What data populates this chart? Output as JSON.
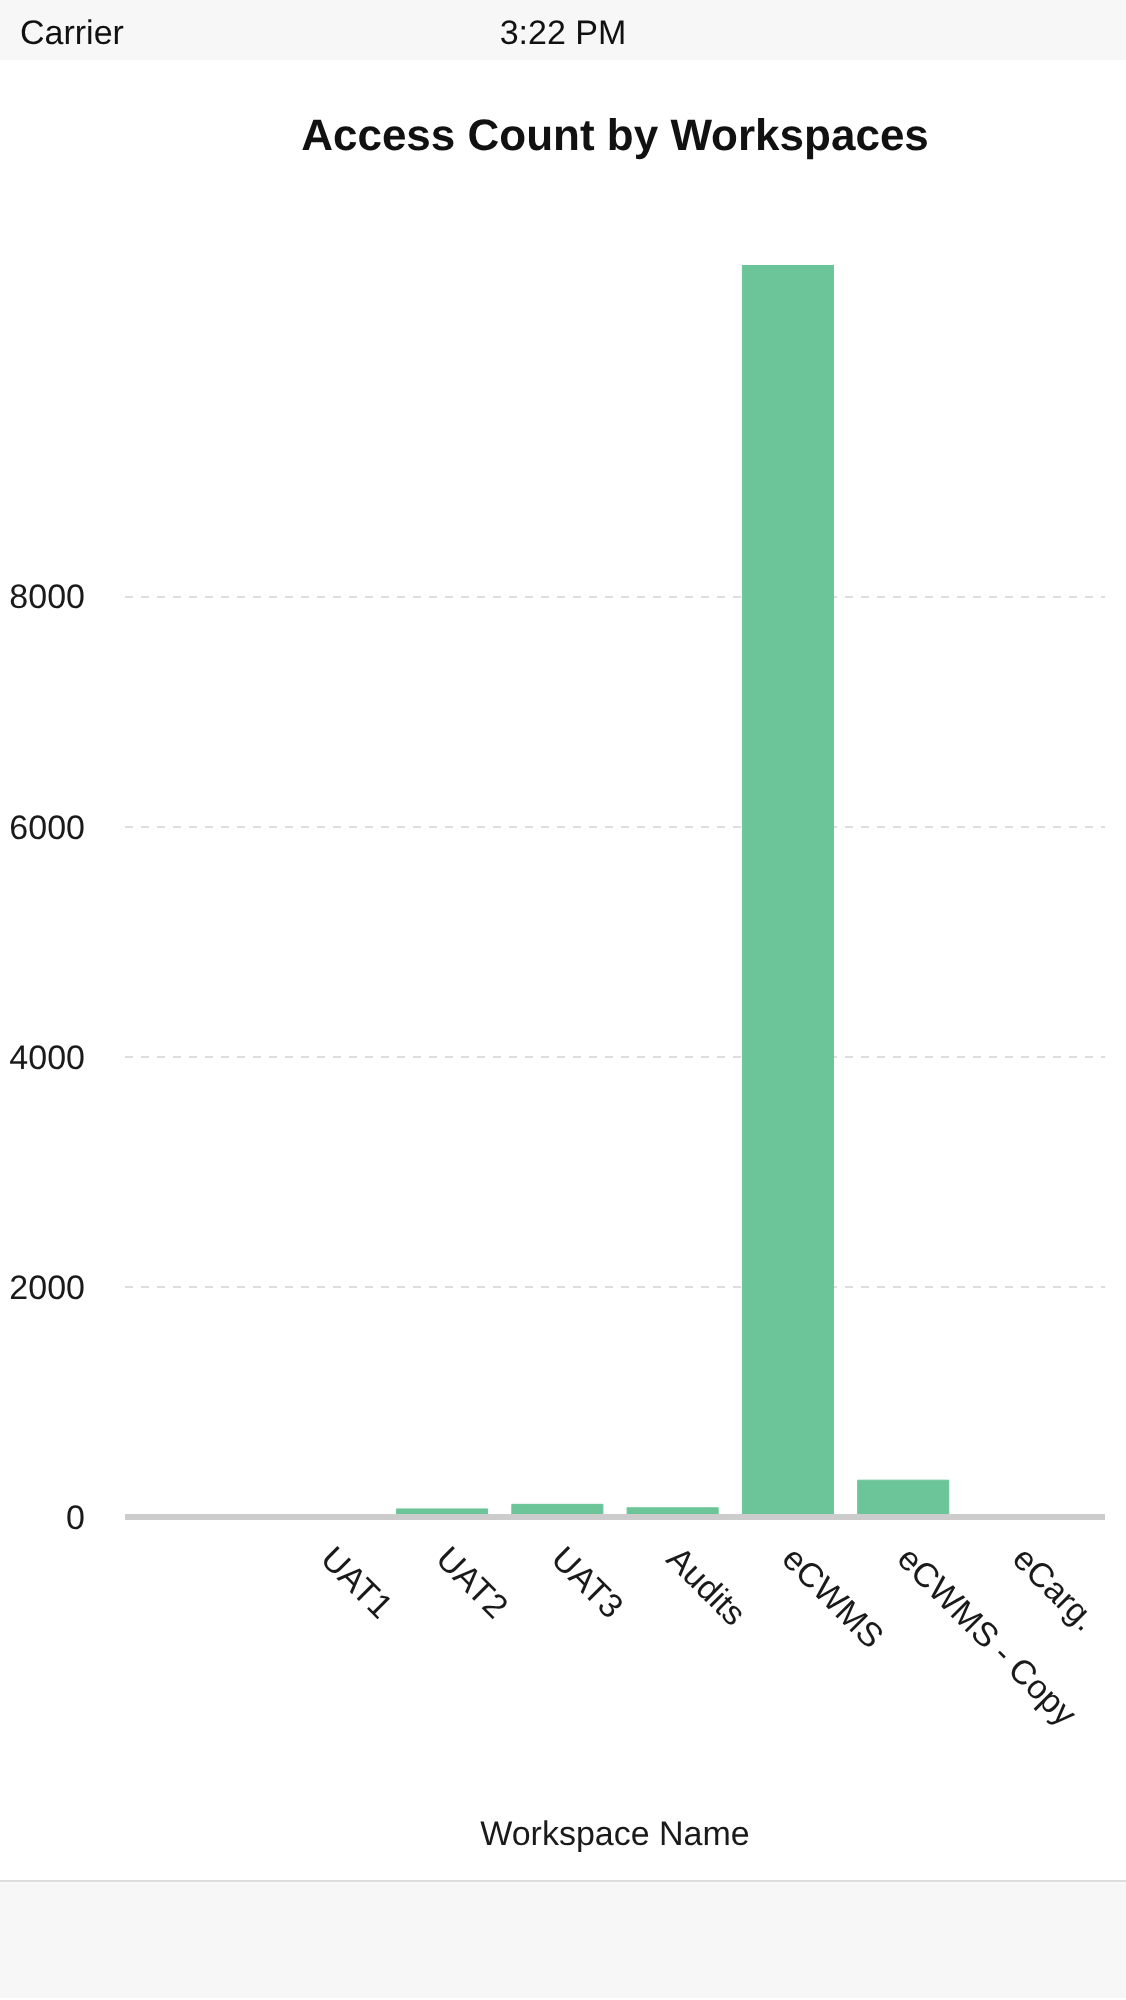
{
  "chart_data": {
    "type": "bar",
    "title": "Access Count by Workspaces",
    "xlabel": "Workspace Name",
    "categories": [
      null,
      "UAT1",
      "UAT2",
      "UAT3",
      "Audits",
      "eCWMS",
      "eCWMS - Copy",
      "eCarg."
    ],
    "values": [
      0,
      0,
      70,
      110,
      80,
      10880,
      320,
      0
    ],
    "color": "#6cc598",
    "ylim": [
      0,
      10880
    ],
    "yticks": [
      0,
      2000,
      4000,
      6000,
      8000
    ],
    "grid": "y",
    "annotations": [
      "Carrier",
      "3:22 PM"
    ]
  }
}
